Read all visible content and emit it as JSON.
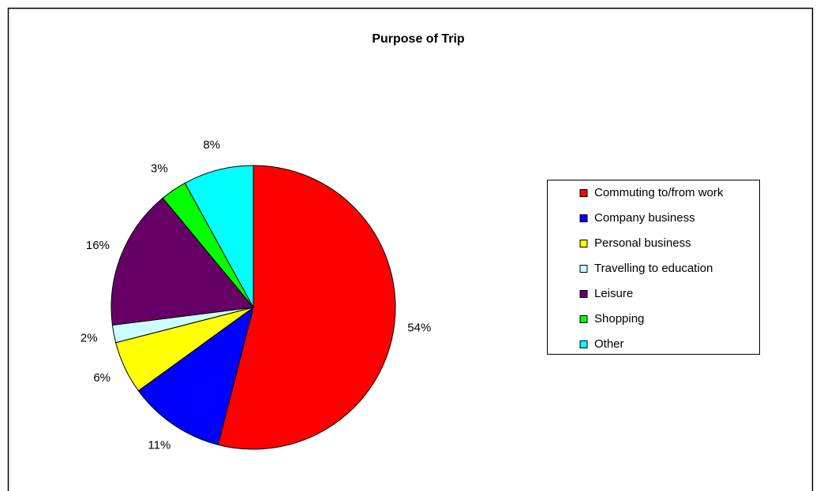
{
  "chart_data": {
    "type": "pie",
    "title": "Purpose of Trip",
    "categories": [
      "Commuting to/from work",
      "Company business",
      "Personal business",
      "Travelling to education",
      "Leisure",
      "Shopping",
      "Other"
    ],
    "values": [
      54,
      11,
      6,
      2,
      16,
      3,
      8
    ],
    "value_labels": [
      "54%",
      "11%",
      "6%",
      "2%",
      "16%",
      "3%",
      "8%"
    ],
    "colors": [
      "#ff0000",
      "#0000ff",
      "#ffff00",
      "#ccffff",
      "#660066",
      "#00ff00",
      "#00ffff"
    ],
    "legend": "right"
  }
}
